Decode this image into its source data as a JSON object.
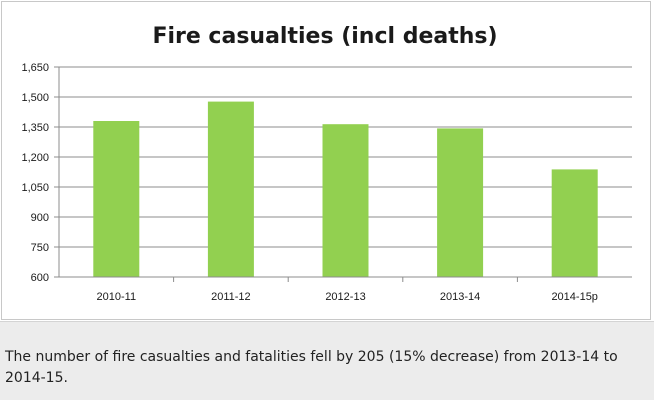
{
  "chart_data": {
    "type": "bar",
    "title": "Fire casualties (incl deaths)",
    "categories": [
      "2010-11",
      "2011-12",
      "2012-13",
      "2013-14",
      "2014-15p"
    ],
    "values": [
      1380,
      1477,
      1364,
      1343,
      1138
    ],
    "y_ticks": [
      "600",
      "750",
      "900",
      "1,050",
      "1,200",
      "1,350",
      "1,500",
      "1,650"
    ],
    "ylim": [
      600,
      1650
    ],
    "xlabel": "",
    "ylabel": "",
    "grid": true,
    "legend": "none",
    "bar_color": "#92d050",
    "grid_color": "#8c8c8c"
  },
  "caption": "The number of fire casualties and fatalities fell by 205 (15% decrease) from 2013-14 to 2014-15."
}
